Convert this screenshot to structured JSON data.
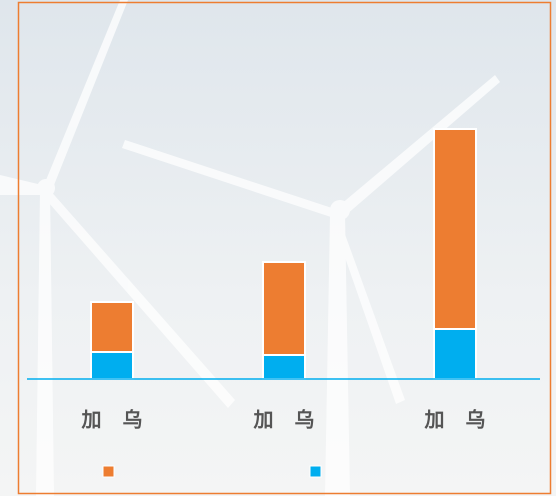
{
  "chart_data": {
    "type": "stacked-bar",
    "categories": [
      "加 乌",
      "加 乌",
      "加 乌"
    ],
    "series": [
      {
        "color": "#00aeef",
        "values": [
          27,
          24,
          50
        ]
      },
      {
        "color": "#ed7d31",
        "values": [
          50,
          93,
          200
        ]
      }
    ]
  }
}
